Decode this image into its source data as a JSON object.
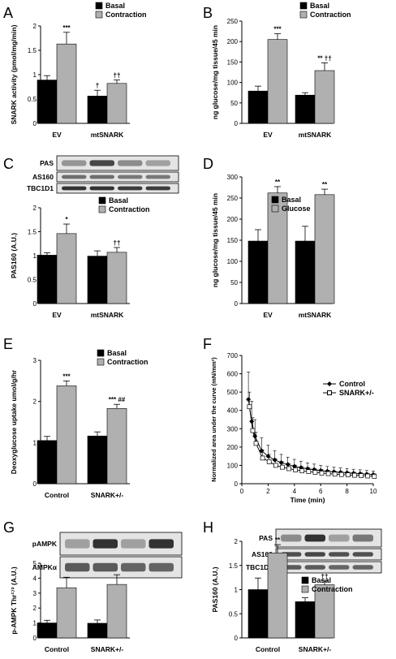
{
  "colors": {
    "basal": "#000000",
    "treated": "#b0b0b0"
  },
  "panels": {
    "A": {
      "letter": "A",
      "legend": [
        "Basal",
        "Contraction"
      ]
    },
    "B": {
      "letter": "B",
      "legend": [
        "Basal",
        "Contraction"
      ]
    },
    "C": {
      "letter": "C",
      "legend": [
        "Basal",
        "Contraction"
      ],
      "blots": [
        "PAS",
        "AS160",
        "TBC1D1"
      ]
    },
    "D": {
      "letter": "D",
      "legend": [
        "Basal",
        "Glucose"
      ]
    },
    "E": {
      "letter": "E",
      "legend": [
        "Basal",
        "Contraction"
      ]
    },
    "F": {
      "letter": "F",
      "legend": [
        "Control",
        "SNARK+/-"
      ]
    },
    "G": {
      "letter": "G",
      "blots": [
        "pAMPK",
        "AMPKα"
      ]
    },
    "H": {
      "letter": "H",
      "legend": [
        "Basal",
        "Contraction"
      ],
      "blots": [
        "PAS",
        "AS160",
        "TBC1D1"
      ]
    }
  },
  "chart_data": [
    {
      "id": "A",
      "type": "bar",
      "categories": [
        "EV",
        "mtSNARK"
      ],
      "series": [
        {
          "name": "Basal",
          "values": [
            0.89,
            0.56
          ],
          "errors": [
            0.09,
            0.12
          ]
        },
        {
          "name": "Contraction",
          "values": [
            1.63,
            0.82
          ],
          "errors": [
            0.24,
            0.07
          ]
        }
      ],
      "annotations": [
        [
          "",
          "***"
        ],
        [
          "†",
          "††"
        ]
      ],
      "ylabel": "SNARK activity (pmol/mg/min)",
      "ylim": [
        0,
        2
      ],
      "yticks": [
        0,
        0.5,
        1,
        1.5,
        2
      ],
      "ytick_labels": [
        "0",
        "0.5",
        "1",
        "1.5",
        "2"
      ]
    },
    {
      "id": "B",
      "type": "bar",
      "categories": [
        "EV",
        "mtSNARK"
      ],
      "series": [
        {
          "name": "Basal",
          "values": [
            79,
            69
          ],
          "errors": [
            12,
            6
          ]
        },
        {
          "name": "Contraction",
          "values": [
            205,
            129
          ],
          "errors": [
            14,
            19
          ]
        }
      ],
      "annotations": [
        [
          "",
          "***"
        ],
        [
          "",
          "** ††"
        ]
      ],
      "ylabel": "ng glucose/mg tissue/45 min",
      "ylim": [
        0,
        250
      ],
      "yticks": [
        0,
        50,
        100,
        150,
        200,
        250
      ],
      "ytick_labels": [
        "0",
        "50",
        "100",
        "150",
        "200",
        "250"
      ]
    },
    {
      "id": "C",
      "type": "bar",
      "categories": [
        "EV",
        "mtSNARK"
      ],
      "series": [
        {
          "name": "Basal",
          "values": [
            1.01,
            0.99
          ],
          "errors": [
            0.05,
            0.11
          ]
        },
        {
          "name": "Contraction",
          "values": [
            1.46,
            1.07
          ],
          "errors": [
            0.2,
            0.1
          ]
        }
      ],
      "annotations": [
        [
          "",
          "*"
        ],
        [
          "",
          "††"
        ]
      ],
      "ylabel": "PAS160 (A.U.)",
      "ylim": [
        0,
        2
      ],
      "yticks": [
        0,
        0.5,
        1,
        1.5,
        2
      ],
      "ytick_labels": [
        "0",
        "0.5",
        "1",
        "1.5",
        "2"
      ]
    },
    {
      "id": "D",
      "type": "bar",
      "categories": [
        "EV",
        "mtSNARK"
      ],
      "series": [
        {
          "name": "Basal",
          "values": [
            148,
            148
          ],
          "errors": [
            27,
            35
          ]
        },
        {
          "name": "Glucose",
          "values": [
            262,
            258
          ],
          "errors": [
            15,
            13
          ]
        }
      ],
      "annotations": [
        [
          "",
          "**"
        ],
        [
          "",
          "**"
        ]
      ],
      "ylabel": "ng glucose/mg tissue/45 min",
      "ylim": [
        0,
        300
      ],
      "yticks": [
        0,
        50,
        100,
        150,
        200,
        250,
        300
      ],
      "ytick_labels": [
        "0",
        "50",
        "100",
        "150",
        "200",
        "250",
        "300"
      ]
    },
    {
      "id": "E",
      "type": "bar",
      "categories": [
        "Control",
        "SNARK+/-"
      ],
      "series": [
        {
          "name": "Basal",
          "values": [
            1.05,
            1.16
          ],
          "errors": [
            0.1,
            0.1
          ]
        },
        {
          "name": "Contraction",
          "values": [
            2.38,
            1.83
          ],
          "errors": [
            0.12,
            0.1
          ]
        }
      ],
      "annotations": [
        [
          "",
          "***"
        ],
        [
          "",
          "*** ##"
        ]
      ],
      "ylabel": "Deoxyglucose uptake umol/g/hr",
      "ylim": [
        0,
        3
      ],
      "yticks": [
        0,
        1,
        2,
        3
      ],
      "ytick_labels": [
        "0",
        "1",
        "2",
        "3"
      ]
    },
    {
      "id": "F",
      "type": "line",
      "x": [
        0.5,
        0.75,
        1,
        1.5,
        2,
        2.5,
        3,
        3.5,
        4,
        4.5,
        5,
        5.5,
        6,
        6.5,
        7,
        7.5,
        8,
        8.5,
        9,
        9.5,
        10
      ],
      "series": [
        {
          "name": "Control",
          "values": [
            460,
            340,
            260,
            180,
            150,
            130,
            115,
            105,
            95,
            88,
            82,
            77,
            72,
            68,
            65,
            62,
            60,
            57,
            55,
            52,
            50
          ],
          "errors": [
            150,
            110,
            90,
            70,
            60,
            50,
            45,
            40,
            38,
            35,
            32,
            30,
            28,
            26,
            25,
            24,
            23,
            22,
            21,
            20,
            19
          ]
        },
        {
          "name": "SNARK+/-",
          "values": [
            420,
            290,
            220,
            140,
            120,
            100,
            90,
            82,
            75,
            70,
            66,
            62,
            58,
            55,
            52,
            50,
            48,
            46,
            44,
            42,
            40
          ],
          "errors": [
            80,
            70,
            60,
            45,
            40,
            35,
            30,
            28,
            26,
            24,
            22,
            21,
            20,
            19,
            18,
            17,
            16,
            16,
            15,
            15,
            14
          ]
        }
      ],
      "xlabel": "Time (min)",
      "ylabel": "Normalized area under the curve (mN/mm²)",
      "xlim": [
        0,
        10
      ],
      "xticks": [
        0,
        2,
        4,
        6,
        8,
        10
      ],
      "xtick_labels": [
        "0",
        "2",
        "4",
        "6",
        "8",
        "10"
      ],
      "ylim": [
        0,
        700
      ],
      "yticks": [
        0,
        100,
        200,
        300,
        400,
        500,
        600,
        700
      ],
      "ytick_labels": [
        "0",
        "100",
        "200",
        "300",
        "400",
        "500",
        "600",
        "700"
      ]
    },
    {
      "id": "G",
      "type": "bar",
      "categories": [
        "Control",
        "SNARK+/-"
      ],
      "series": [
        {
          "name": "Basal",
          "values": [
            1.0,
            0.98
          ],
          "errors": [
            0.18,
            0.22
          ]
        },
        {
          "name": "Contraction",
          "values": [
            3.36,
            3.58
          ],
          "errors": [
            0.7,
            0.65
          ]
        }
      ],
      "ylabel": "p-AMPK Thr¹⁷² (A.U.)",
      "ylim": [
        0,
        5
      ],
      "yticks": [
        0,
        1,
        2,
        3,
        4,
        5
      ],
      "ytick_labels": [
        "0",
        "1",
        "2",
        "3",
        "4",
        "5"
      ]
    },
    {
      "id": "H",
      "type": "bar",
      "categories": [
        "Control",
        "SNARK+/-"
      ],
      "series": [
        {
          "name": "Basal",
          "values": [
            1.0,
            0.75
          ],
          "errors": [
            0.24,
            0.08
          ]
        },
        {
          "name": "Contraction",
          "values": [
            1.76,
            1.1
          ],
          "errors": [
            0.17,
            0.08
          ]
        }
      ],
      "annotations": [
        [
          "",
          "**"
        ],
        [
          "",
          "††"
        ]
      ],
      "ylabel": "PAS160 (A.U.)",
      "ylim": [
        0,
        2
      ],
      "yticks": [
        0,
        0.5,
        1,
        1.5,
        2
      ],
      "ytick_labels": [
        "0",
        "0.5",
        "1",
        "1.5",
        "2"
      ]
    }
  ]
}
